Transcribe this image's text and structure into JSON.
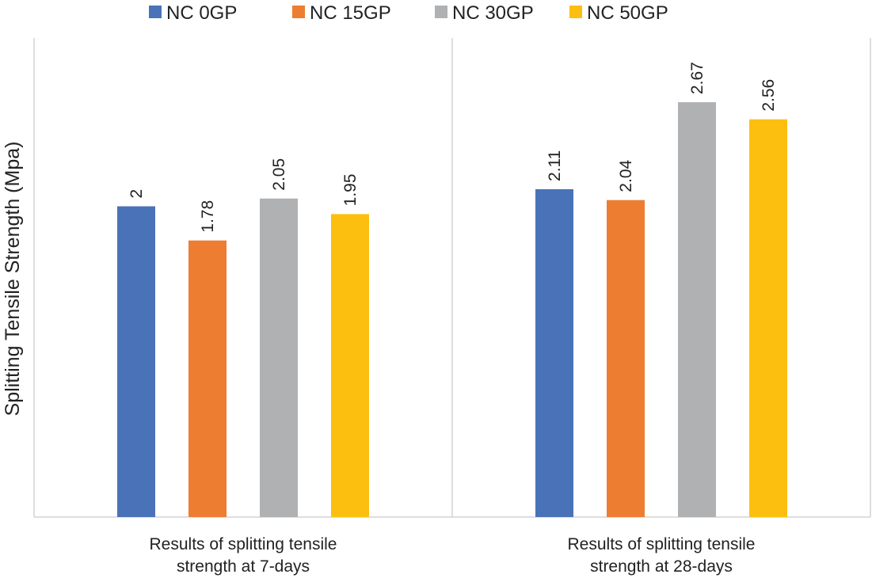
{
  "chart_data": {
    "type": "bar",
    "title": "",
    "xlabel": "",
    "ylabel": "Splitting Tensile Strength (Mpa)",
    "ylim": [
      0,
      3
    ],
    "grid": false,
    "legend_position": "top",
    "categories": [
      [
        "Results of splitting tensile",
        "strength at 7-days"
      ],
      [
        "Results of splitting tensile",
        "strength at 28-days"
      ]
    ],
    "series": [
      {
        "name": "NC 0GP",
        "color": "#4a72b8",
        "values": [
          2,
          2.11
        ],
        "labels": [
          "2",
          "2.11"
        ]
      },
      {
        "name": "NC 15GP",
        "color": "#ed7d31",
        "values": [
          1.78,
          2.04
        ],
        "labels": [
          "1.78",
          "2.04"
        ]
      },
      {
        "name": "NC 30GP",
        "color": "#b0b1b3",
        "values": [
          2.05,
          2.67
        ],
        "labels": [
          "2.05",
          "2.67"
        ]
      },
      {
        "name": "NC 50GP",
        "color": "#fcbf10",
        "values": [
          1.95,
          2.56
        ],
        "labels": [
          "1.95",
          "2.56"
        ]
      }
    ]
  }
}
